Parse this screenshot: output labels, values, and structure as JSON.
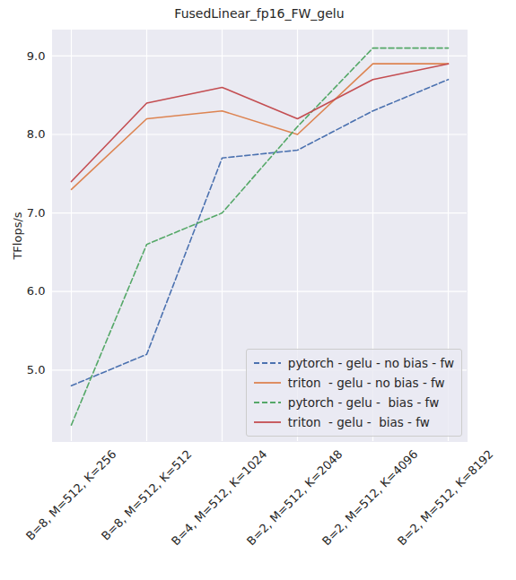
{
  "chart_data": {
    "type": "line",
    "title": "FusedLinear_fp16_FW_gelu",
    "y_label": "TFlops/s",
    "categories": [
      "B=8, M=512, K=256",
      "B=8, M=512, K=512",
      "B=4, M=512, K=1024",
      "B=2, M=512, K=2048",
      "B=2, M=512, K=4096",
      "B=2, M=512, K=8192"
    ],
    "series": [
      {
        "name": "pytorch - gelu - no bias - fw",
        "color": "#4c72b0",
        "line_style": "dashed",
        "values": [
          4.8,
          5.2,
          7.7,
          7.8,
          8.3,
          8.7
        ]
      },
      {
        "name": "triton  - gelu - no bias - fw",
        "color": "#dd8452",
        "line_style": "solid",
        "values": [
          7.3,
          8.2,
          8.3,
          8.0,
          8.9,
          8.9
        ]
      },
      {
        "name": "pytorch - gelu -  bias - fw",
        "color": "#55a868",
        "line_style": "dashed",
        "values": [
          4.3,
          6.6,
          7.0,
          8.1,
          9.1,
          9.1
        ]
      },
      {
        "name": "triton  - gelu -  bias - fw",
        "color": "#c44e52",
        "line_style": "solid",
        "values": [
          7.4,
          8.4,
          8.6,
          8.2,
          8.7,
          8.9
        ]
      }
    ],
    "ylim": [
      4.09,
      9.33
    ],
    "yticks": [
      5,
      6,
      7,
      8,
      9
    ],
    "grid": true,
    "legend": "lower right"
  }
}
